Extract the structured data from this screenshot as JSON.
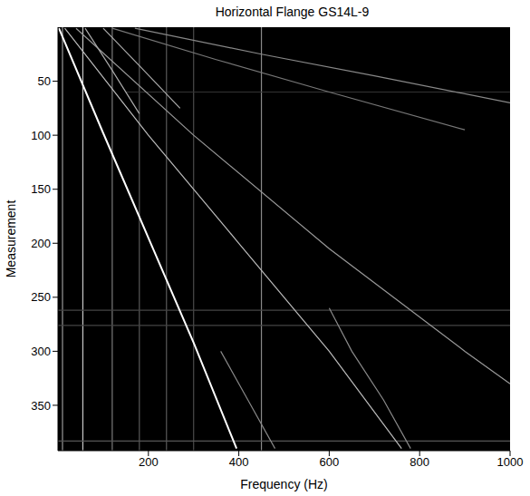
{
  "chart_data": {
    "type": "line",
    "title": "Horizontal Flange GS14L-9",
    "x_label": "Frequency (Hz)",
    "y_label": "Measurement",
    "xlim": [
      0,
      1000
    ],
    "xticks": [
      200,
      400,
      600,
      800,
      1000
    ],
    "ylim": [
      0,
      392
    ],
    "yticks": [
      50,
      100,
      150,
      200,
      250,
      300,
      350
    ],
    "grid": false,
    "series": [
      {
        "x": [
          10,
          10
        ],
        "values": [
          0,
          392
        ],
        "color": "#9a9a9a"
      },
      {
        "x": [
          55,
          55
        ],
        "values": [
          0,
          392
        ],
        "color": "#c8c8c8"
      },
      {
        "x": [
          120,
          120
        ],
        "values": [
          0,
          392
        ],
        "color": "#7a7a7a"
      },
      {
        "x": [
          180,
          180
        ],
        "values": [
          0,
          392
        ],
        "color": "#5a5a5a"
      },
      {
        "x": [
          240,
          240
        ],
        "values": [
          0,
          392
        ],
        "color": "#5a5a5a"
      },
      {
        "x": [
          300,
          300
        ],
        "values": [
          0,
          392
        ],
        "color": "#4a4a4a"
      },
      {
        "x": [
          450,
          450
        ],
        "values": [
          0,
          392
        ],
        "color": "#8a8a8a"
      },
      {
        "x": [
          0,
          1000
        ],
        "values": [
          262,
          262
        ],
        "color": "#444444"
      },
      {
        "x": [
          0,
          1000
        ],
        "values": [
          276,
          276
        ],
        "color": "#444444"
      },
      {
        "x": [
          0,
          1000
        ],
        "values": [
          383,
          383
        ],
        "color": "#555555"
      },
      {
        "x": [
          150,
          1000
        ],
        "values": [
          60,
          60
        ],
        "color": "#333333"
      },
      {
        "x": [
          2,
          100,
          200,
          300,
          395
        ],
        "values": [
          1,
          98,
          195,
          292,
          390
        ],
        "color": "#ffffff"
      },
      {
        "x": [
          15,
          200,
          400,
          600,
          760
        ],
        "values": [
          1,
          100,
          200,
          300,
          390
        ],
        "color": "#bbbbbb"
      },
      {
        "x": [
          40,
          300,
          600,
          900,
          1000
        ],
        "values": [
          1,
          100,
          205,
          300,
          330
        ],
        "color": "#999999"
      },
      {
        "x": [
          60,
          120,
          180
        ],
        "values": [
          1,
          40,
          80
        ],
        "color": "#aaaaaa"
      },
      {
        "x": [
          100,
          190,
          270
        ],
        "values": [
          1,
          40,
          75
        ],
        "color": "#aaaaaa"
      },
      {
        "x": [
          170,
          450,
          700,
          1000
        ],
        "values": [
          1,
          25,
          45,
          70
        ],
        "color": "#888888"
      },
      {
        "x": [
          120,
          350,
          600,
          900
        ],
        "values": [
          1,
          30,
          60,
          95
        ],
        "color": "#777777"
      },
      {
        "x": [
          360,
          420,
          480
        ],
        "values": [
          300,
          345,
          390
        ],
        "color": "#888888"
      },
      {
        "x": [
          600,
          650,
          720,
          780
        ],
        "values": [
          260,
          300,
          345,
          390
        ],
        "color": "#8a8a8a"
      }
    ]
  }
}
